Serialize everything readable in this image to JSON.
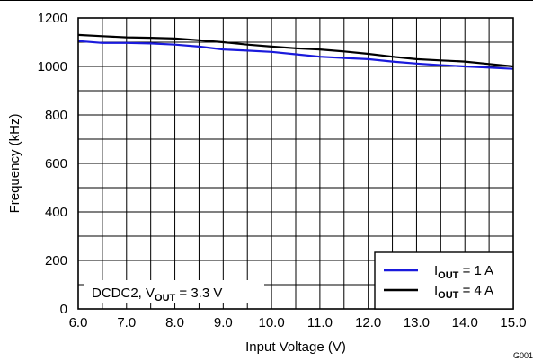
{
  "chart_data": {
    "type": "line",
    "xlabel": "Input Voltage (V)",
    "ylabel": "Frequency (kHz)",
    "xlim": [
      6.0,
      15.0
    ],
    "ylim": [
      0,
      1200
    ],
    "x_ticks": [
      "6.0",
      "7.0",
      "8.0",
      "9.0",
      "10.0",
      "11.0",
      "12.0",
      "13.0",
      "14.0",
      "15.0"
    ],
    "y_ticks": [
      "0",
      "200",
      "400",
      "600",
      "800",
      "1000",
      "1200"
    ],
    "grid": true,
    "legend_position": "bottom-right",
    "annotation": {
      "prefix": "DCDC2, V",
      "sub": "OUT",
      "suffix": " = 3.3 V"
    },
    "figure_id": "G001",
    "series": [
      {
        "legend": {
          "prefix": "I",
          "sub": "OUT",
          "suffix": " = 1 A"
        },
        "color": "#1a1adc",
        "x": [
          6.0,
          6.5,
          7.0,
          7.5,
          8.0,
          8.5,
          9.0,
          9.5,
          10.0,
          10.5,
          11.0,
          11.5,
          12.0,
          12.5,
          13.0,
          13.5,
          14.0,
          14.5,
          15.0
        ],
        "y": [
          1105,
          1097,
          1097,
          1095,
          1090,
          1082,
          1070,
          1065,
          1060,
          1050,
          1040,
          1035,
          1030,
          1020,
          1012,
          1005,
          1000,
          995,
          990
        ]
      },
      {
        "legend": {
          "prefix": "I",
          "sub": "OUT",
          "suffix": " = 4 A"
        },
        "color": "#000000",
        "x": [
          6.0,
          6.5,
          7.0,
          7.5,
          8.0,
          8.5,
          9.0,
          9.5,
          10.0,
          10.5,
          11.0,
          11.5,
          12.0,
          12.5,
          13.0,
          13.5,
          14.0,
          14.5,
          15.0
        ],
        "y": [
          1130,
          1125,
          1120,
          1118,
          1115,
          1108,
          1100,
          1090,
          1082,
          1075,
          1070,
          1062,
          1052,
          1040,
          1030,
          1025,
          1020,
          1010,
          1000
        ]
      }
    ]
  }
}
